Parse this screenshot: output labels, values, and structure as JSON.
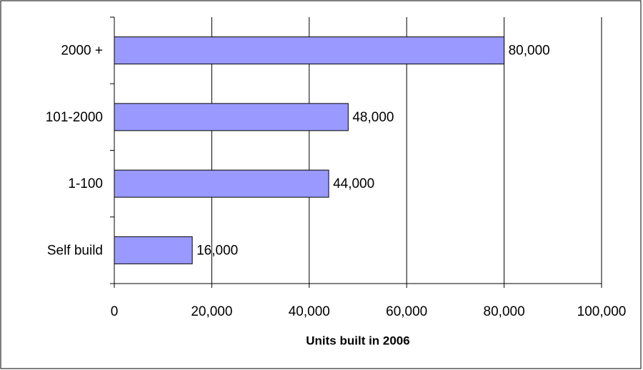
{
  "chart_data": {
    "type": "hbar",
    "xlabel": "Units built in 2006",
    "categories": [
      "2000 +",
      "101-2000",
      "1-100",
      "Self build"
    ],
    "values": [
      80000,
      48000,
      44000,
      16000
    ],
    "value_labels": [
      "80,000",
      "48,000",
      "44,000",
      "16,000"
    ],
    "color": "#9999ff",
    "xlim": [
      0,
      100000
    ],
    "xticks": [
      0,
      {
        "value": 20000,
        "label": "20,000"
      },
      {
        "value": 40000,
        "label": "40,000"
      },
      {
        "value": 60000,
        "label": "60,000"
      },
      {
        "value": 80000,
        "label": "80,000"
      },
      {
        "value": 100000,
        "label": "100,000"
      }
    ],
    "grid": true
  }
}
